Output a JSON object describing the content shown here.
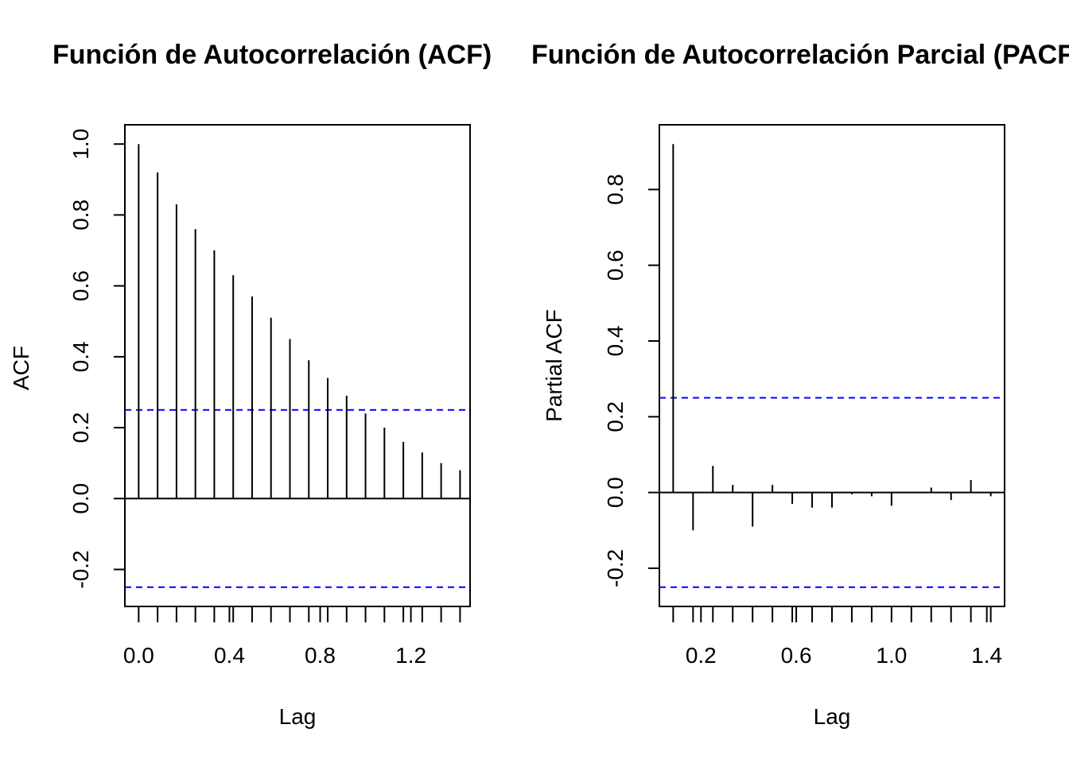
{
  "chart_data": [
    {
      "type": "bar",
      "title": "Función de Autocorrelación (ACF)",
      "xlabel": "Lag",
      "ylabel": "ACF",
      "xlim": [
        0.0,
        1.4
      ],
      "ylim": [
        -0.25,
        1.0
      ],
      "x_ticks": [
        "0.0",
        "0.4",
        "0.8",
        "1.2"
      ],
      "x_tick_values": [
        0.0,
        0.4,
        0.8,
        1.2
      ],
      "y_ticks": [
        "-0.2",
        "0.0",
        "0.2",
        "0.4",
        "0.6",
        "0.8",
        "1.0"
      ],
      "y_tick_values": [
        -0.2,
        0.0,
        0.2,
        0.4,
        0.6,
        0.8,
        1.0
      ],
      "confidence_band": 0.25,
      "lags": [
        0.0,
        0.0833,
        0.1667,
        0.25,
        0.3333,
        0.4167,
        0.5,
        0.5833,
        0.6667,
        0.75,
        0.8333,
        0.9167,
        1.0,
        1.0833,
        1.1667,
        1.25,
        1.3333,
        1.4167
      ],
      "values": [
        1.0,
        0.92,
        0.83,
        0.76,
        0.7,
        0.63,
        0.57,
        0.51,
        0.45,
        0.39,
        0.34,
        0.29,
        0.24,
        0.2,
        0.16,
        0.13,
        0.1,
        0.08
      ],
      "band_color": "#0000ff",
      "grid": false
    },
    {
      "type": "bar",
      "title": "Función de Autocorrelación Parcial (PACF)",
      "xlabel": "Lag",
      "ylabel": "Partial ACF",
      "xlim": [
        0.0833,
        1.4167
      ],
      "ylim": [
        -0.25,
        0.92
      ],
      "x_ticks": [
        "0.2",
        "0.6",
        "1.0",
        "1.4"
      ],
      "x_tick_values": [
        0.2,
        0.6,
        1.0,
        1.4
      ],
      "y_ticks": [
        "-0.2",
        "0.0",
        "0.2",
        "0.4",
        "0.6",
        "0.8"
      ],
      "y_tick_values": [
        -0.2,
        0.0,
        0.2,
        0.4,
        0.6,
        0.8
      ],
      "confidence_band": 0.25,
      "lags": [
        0.0833,
        0.1667,
        0.25,
        0.3333,
        0.4167,
        0.5,
        0.5833,
        0.6667,
        0.75,
        0.8333,
        0.9167,
        1.0,
        1.0833,
        1.1667,
        1.25,
        1.3333,
        1.4167
      ],
      "values": [
        0.92,
        -0.1,
        0.07,
        0.02,
        -0.09,
        0.02,
        -0.03,
        -0.04,
        -0.04,
        -0.005,
        -0.01,
        -0.035,
        0.0,
        0.013,
        -0.02,
        0.033,
        -0.01
      ],
      "band_color": "#0000ff",
      "grid": false
    }
  ]
}
